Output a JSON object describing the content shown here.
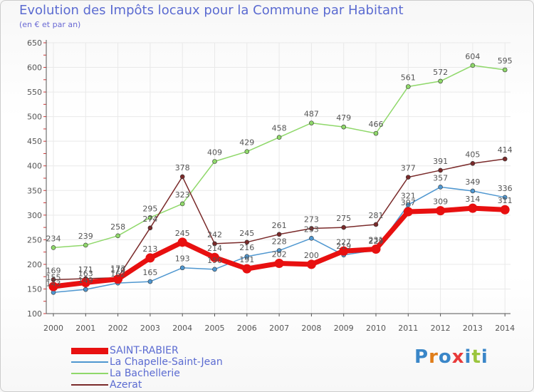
{
  "title": "Evolution des Impôts locaux pour la Commune par Habitant",
  "subtitle": "(en € et par an)",
  "logo_text": "Proxiti",
  "colors": {
    "SAINT-RABIER": "#e81010",
    "La Chapelle-Saint-Jean": "#4f97d0",
    "La Bachellerie": "#8fd86a",
    "Azerat": "#7a2a2a",
    "title": "#5b6bd1",
    "axis": "#555555",
    "grid": "#e9e9e9"
  },
  "chart_data": {
    "type": "line",
    "title": "Evolution des Impôts locaux pour la Commune par Habitant",
    "subtitle": "(en € et par an)",
    "x": [
      2000,
      2001,
      2002,
      2003,
      2004,
      2005,
      2006,
      2007,
      2008,
      2009,
      2010,
      2011,
      2012,
      2013,
      2014
    ],
    "ylim": [
      100,
      650
    ],
    "yticks": [
      100,
      150,
      200,
      250,
      300,
      350,
      400,
      450,
      500,
      550,
      600,
      650
    ],
    "grid": true,
    "legend_position": "bottom-left",
    "series": [
      {
        "name": "SAINT-RABIER",
        "values": [
          155,
          163,
          170,
          213,
          245,
          214,
          191,
          202,
          200,
          227,
          231,
          307,
          309,
          314,
          311
        ]
      },
      {
        "name": "La Chapelle-Saint-Jean",
        "values": [
          143,
          149,
          162,
          165,
          193,
          190,
          216,
          228,
          253,
          219,
          229,
          321,
          357,
          349,
          336
        ]
      },
      {
        "name": "La Bachellerie",
        "values": [
          234,
          239,
          258,
          295,
          323,
          409,
          429,
          458,
          487,
          479,
          466,
          561,
          572,
          604,
          595
        ]
      },
      {
        "name": "Azerat",
        "values": [
          169,
          171,
          173,
          274,
          378,
          242,
          245,
          261,
          273,
          275,
          281,
          377,
          391,
          405,
          414
        ]
      }
    ]
  }
}
